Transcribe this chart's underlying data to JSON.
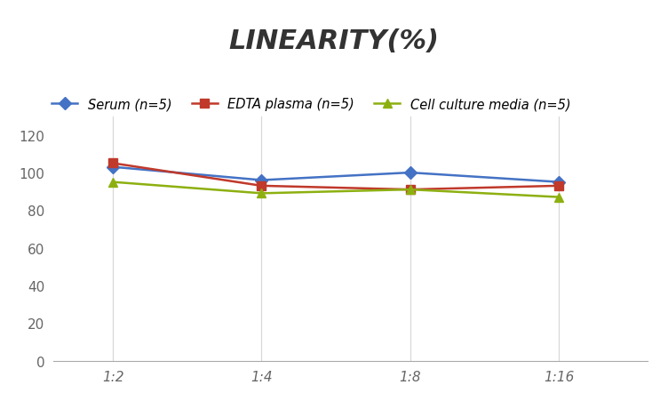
{
  "title": "LINEARITY(%)",
  "x_labels": [
    "1:2",
    "1:4",
    "1:8",
    "1:16"
  ],
  "x_positions": [
    0,
    1,
    2,
    3
  ],
  "series": [
    {
      "label": "Serum (n=5)",
      "values": [
        103,
        96,
        100,
        95
      ],
      "color": "#4472C4",
      "marker": "D",
      "markersize": 7,
      "linewidth": 1.8
    },
    {
      "label": "EDTA plasma (n=5)",
      "values": [
        105,
        93,
        91,
        93
      ],
      "color": "#C0392B",
      "marker": "s",
      "markersize": 7,
      "linewidth": 1.8
    },
    {
      "label": "Cell culture media (n=5)",
      "values": [
        95,
        89,
        91,
        87
      ],
      "color": "#8DB010",
      "marker": "^",
      "markersize": 7,
      "linewidth": 1.8
    }
  ],
  "ylim": [
    0,
    130
  ],
  "yticks": [
    0,
    20,
    40,
    60,
    80,
    100,
    120
  ],
  "grid_color": "#D8D8D8",
  "background_color": "#FFFFFF",
  "title_fontsize": 22,
  "title_fontstyle": "italic",
  "title_fontweight": "bold",
  "legend_fontsize": 10.5,
  "tick_fontsize": 11,
  "tick_color": "#666666"
}
